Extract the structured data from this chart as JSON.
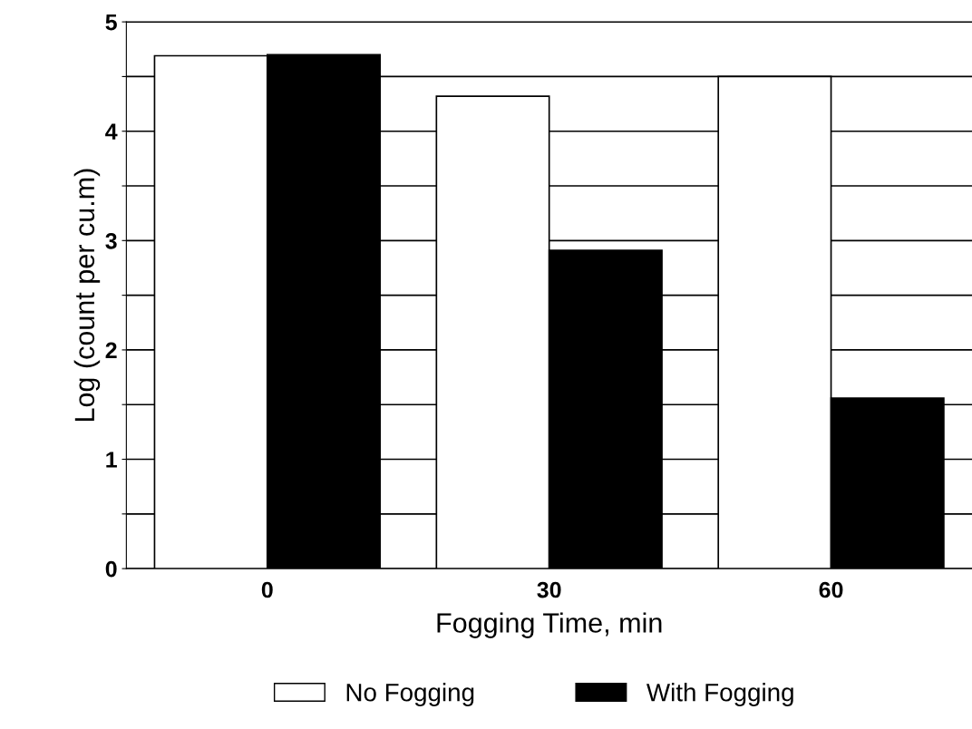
{
  "chart_data": {
    "type": "bar",
    "xlabel": "Fogging Time, min",
    "ylabel": "Log (count per cu.m)",
    "categories": [
      "0",
      "30",
      "60"
    ],
    "series": [
      {
        "name": "No Fogging",
        "color": "#ffffff",
        "values": [
          4.69,
          4.32,
          4.5
        ]
      },
      {
        "name": "With Fogging",
        "color": "#000000",
        "values": [
          4.7,
          2.91,
          1.56
        ]
      }
    ],
    "ylim": [
      0,
      5
    ],
    "yticks": [
      0,
      {
        "value": 0.5,
        "label": null
      },
      1,
      {
        "value": 1.5,
        "label": null
      },
      2,
      {
        "value": 2.5,
        "label": null
      },
      3,
      {
        "value": 3.5,
        "label": null
      },
      4,
      {
        "value": 4.5,
        "label": null
      },
      5
    ],
    "grid": "y",
    "legend": "bottom"
  }
}
